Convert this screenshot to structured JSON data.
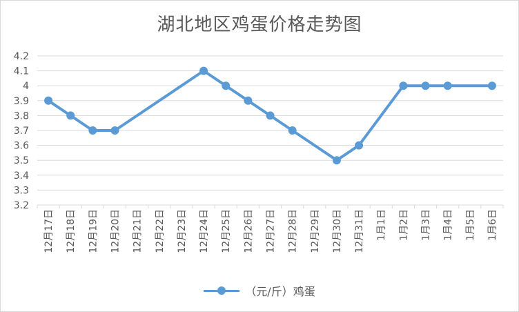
{
  "chart_data": {
    "type": "line",
    "title": "湖北地区鸡蛋价格走势图",
    "categories": [
      "12月17日",
      "12月18日",
      "12月19日",
      "12月20日",
      "12月21日",
      "12月22日",
      "12月23日",
      "12月24日",
      "12月25日",
      "12月26日",
      "12月27日",
      "12月28日",
      "12月29日",
      "12月30日",
      "12月31日",
      "1月1日",
      "1月2日",
      "1月3日",
      "1月4日",
      "1月5日",
      "1月6日"
    ],
    "series": [
      {
        "name": "（元/斤）鸡蛋",
        "values": [
          3.9,
          3.8,
          3.7,
          3.7,
          null,
          null,
          null,
          4.1,
          4.0,
          3.9,
          3.8,
          3.7,
          null,
          3.5,
          3.6,
          null,
          4.0,
          4.0,
          4.0,
          null,
          4.0
        ],
        "connect_gaps": true,
        "color": "#5b9bd5"
      }
    ],
    "ylim": [
      3.2,
      4.2
    ],
    "yticks": [
      "3.2",
      "3.3",
      "3.4",
      "3.5",
      "3.6",
      "3.7",
      "3.8",
      "3.9",
      "4",
      "4.1",
      "4.2"
    ],
    "grid": true,
    "legend": "bottom"
  }
}
